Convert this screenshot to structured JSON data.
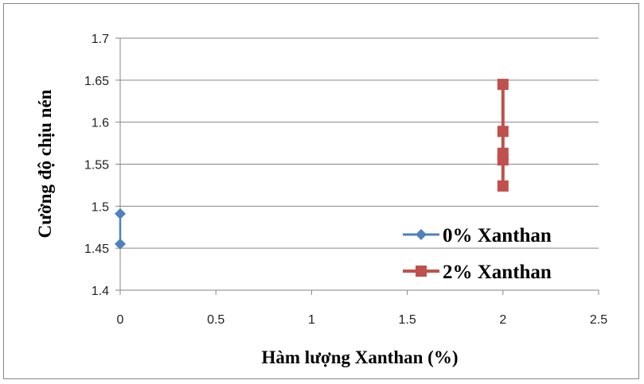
{
  "chart_data": {
    "type": "scatter",
    "xlabel": "Hàm lượng Xanthan (%)",
    "ylabel": "Cường độ chịu nén",
    "xlim": [
      0,
      2.5
    ],
    "ylim": [
      1.4,
      1.7
    ],
    "xticks": [
      "0",
      "0.5",
      "1",
      "1.5",
      "2",
      "2.5"
    ],
    "yticks": [
      "1.4",
      "1.45",
      "1.5",
      "1.55",
      "1.6",
      "1.65",
      "1.7"
    ],
    "grid": "horizontal",
    "legend_position": "bottom-right",
    "series": [
      {
        "name": "0% Xanthan",
        "color": "#4F81BD",
        "marker": "diamond",
        "x": [
          0,
          0
        ],
        "y": [
          1.491,
          1.455
        ]
      },
      {
        "name": "2% Xanthan",
        "color": "#C0504D",
        "marker": "square",
        "x": [
          2,
          2,
          2,
          2,
          2
        ],
        "y": [
          1.645,
          1.589,
          1.563,
          1.555,
          1.524
        ]
      }
    ]
  }
}
